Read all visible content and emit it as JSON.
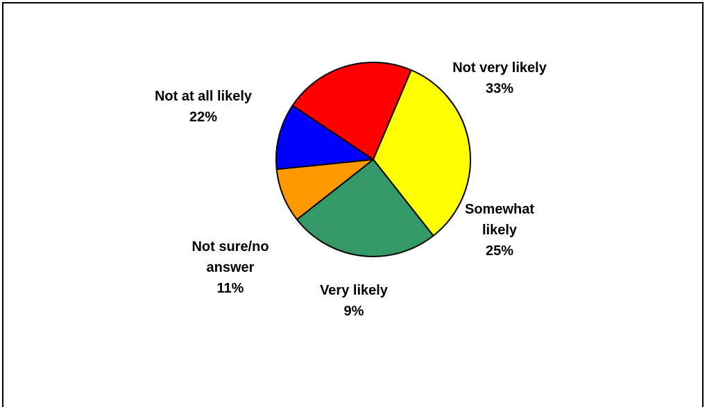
{
  "chart_data": {
    "type": "pie",
    "slices": [
      {
        "label_lines": [
          "Not very likely",
          "33%"
        ],
        "value": 33,
        "color": "#ffff00"
      },
      {
        "label_lines": [
          "Somewhat",
          "likely",
          "25%"
        ],
        "value": 25,
        "color": "#339966"
      },
      {
        "label_lines": [
          "Very likely",
          "9%"
        ],
        "value": 9,
        "color": "#ff9900"
      },
      {
        "label_lines": [
          "Not sure/no",
          "answer",
          "11%"
        ],
        "value": 11,
        "color": "#0000ff"
      },
      {
        "label_lines": [
          "Not at all likely",
          "22%"
        ],
        "value": 22,
        "color": "#ff0000"
      }
    ],
    "start_angle_deg": -67,
    "direction": "clockwise"
  }
}
